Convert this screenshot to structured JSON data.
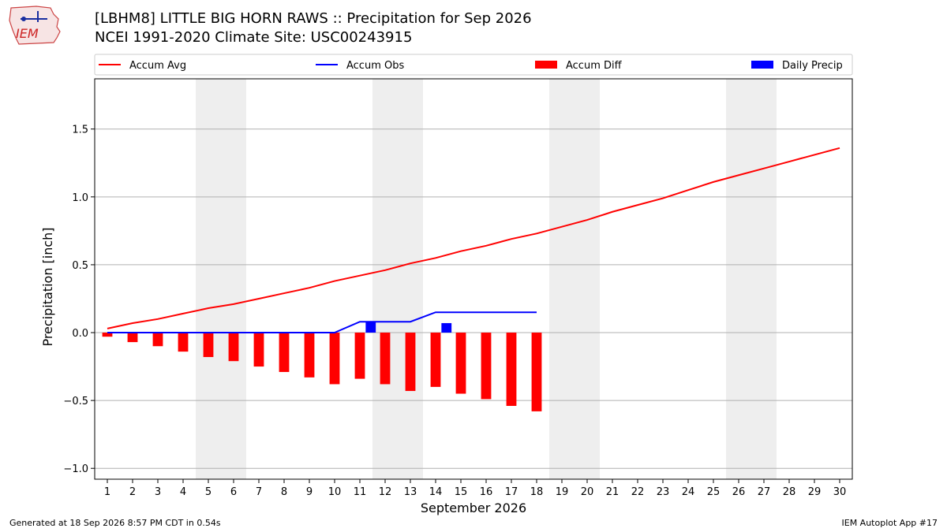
{
  "header": {
    "title_line1": "[LBHM8] LITTLE BIG HORN RAWS :: Precipitation for Sep 2026",
    "title_line2": "NCEI 1991-2020 Climate Site: USC00243915",
    "logo_text": "IEM"
  },
  "footer": {
    "generated": "Generated at 18 Sep 2026 8:57 PM CDT in 0.54s",
    "app": "IEM Autoplot App #17"
  },
  "colors": {
    "accum_avg": "#ff0000",
    "accum_obs": "#0000ff",
    "accum_diff": "#ff0000",
    "daily_precip": "#0000ff",
    "weekend_band": "#eeeeee",
    "grid": "#b0b0b0"
  },
  "chart_data": {
    "type": "line",
    "xlabel": "September 2026",
    "ylabel": "Precipitation [inch]",
    "xlim": [
      0.5,
      30.5
    ],
    "ylim": [
      -1.08,
      1.87
    ],
    "yticks": [
      -1.0,
      -0.5,
      0.0,
      0.5,
      1.0,
      1.5
    ],
    "ytick_labels": [
      "−1.0",
      "−0.5",
      "0.0",
      "0.5",
      "1.0",
      "1.5"
    ],
    "categories": [
      "1",
      "2",
      "3",
      "4",
      "5",
      "6",
      "7",
      "8",
      "9",
      "10",
      "11",
      "12",
      "13",
      "14",
      "15",
      "16",
      "17",
      "18",
      "19",
      "20",
      "21",
      "22",
      "23",
      "24",
      "25",
      "26",
      "27",
      "28",
      "29",
      "30"
    ],
    "grid": true,
    "legend_position": "top",
    "shaded_days": [
      [
        5,
        6
      ],
      [
        12,
        13
      ],
      [
        19,
        20
      ],
      [
        26,
        27
      ]
    ],
    "legend": [
      {
        "label": "Accum Avg",
        "kind": "line",
        "color": "#ff0000"
      },
      {
        "label": "Accum Obs",
        "kind": "line",
        "color": "#0000ff"
      },
      {
        "label": "Accum Diff",
        "kind": "bar",
        "color": "#ff0000"
      },
      {
        "label": "Daily Precip",
        "kind": "bar",
        "color": "#0000ff"
      }
    ],
    "series": [
      {
        "name": "Accum Avg",
        "type": "line",
        "x": [
          1,
          2,
          3,
          4,
          5,
          6,
          7,
          8,
          9,
          10,
          11,
          12,
          13,
          14,
          15,
          16,
          17,
          18,
          19,
          20,
          21,
          22,
          23,
          24,
          25,
          26,
          27,
          28,
          29,
          30
        ],
        "values": [
          0.03,
          0.07,
          0.1,
          0.14,
          0.18,
          0.21,
          0.25,
          0.29,
          0.33,
          0.38,
          0.42,
          0.46,
          0.51,
          0.55,
          0.6,
          0.64,
          0.69,
          0.73,
          0.78,
          0.83,
          0.89,
          0.94,
          0.99,
          1.05,
          1.11,
          1.16,
          1.21,
          1.26,
          1.31,
          1.36
        ]
      },
      {
        "name": "Accum Obs",
        "type": "line",
        "x": [
          1,
          2,
          3,
          4,
          5,
          6,
          7,
          8,
          9,
          10,
          11,
          12,
          13,
          14,
          15,
          16,
          17,
          18
        ],
        "values": [
          0,
          0,
          0,
          0,
          0,
          0,
          0,
          0,
          0,
          0,
          0.08,
          0.08,
          0.08,
          0.15,
          0.15,
          0.15,
          0.15,
          0.15
        ]
      },
      {
        "name": "Accum Diff",
        "type": "bar",
        "x": [
          1,
          2,
          3,
          4,
          5,
          6,
          7,
          8,
          9,
          10,
          11,
          12,
          13,
          14,
          15,
          16,
          17,
          18
        ],
        "values": [
          -0.03,
          -0.07,
          -0.1,
          -0.14,
          -0.18,
          -0.21,
          -0.25,
          -0.29,
          -0.33,
          -0.38,
          -0.34,
          -0.38,
          -0.43,
          -0.4,
          -0.45,
          -0.49,
          -0.54,
          -0.58
        ]
      },
      {
        "name": "Daily Precip",
        "type": "bar",
        "x": [
          11,
          14
        ],
        "values": [
          0.08,
          0.07
        ]
      }
    ]
  }
}
